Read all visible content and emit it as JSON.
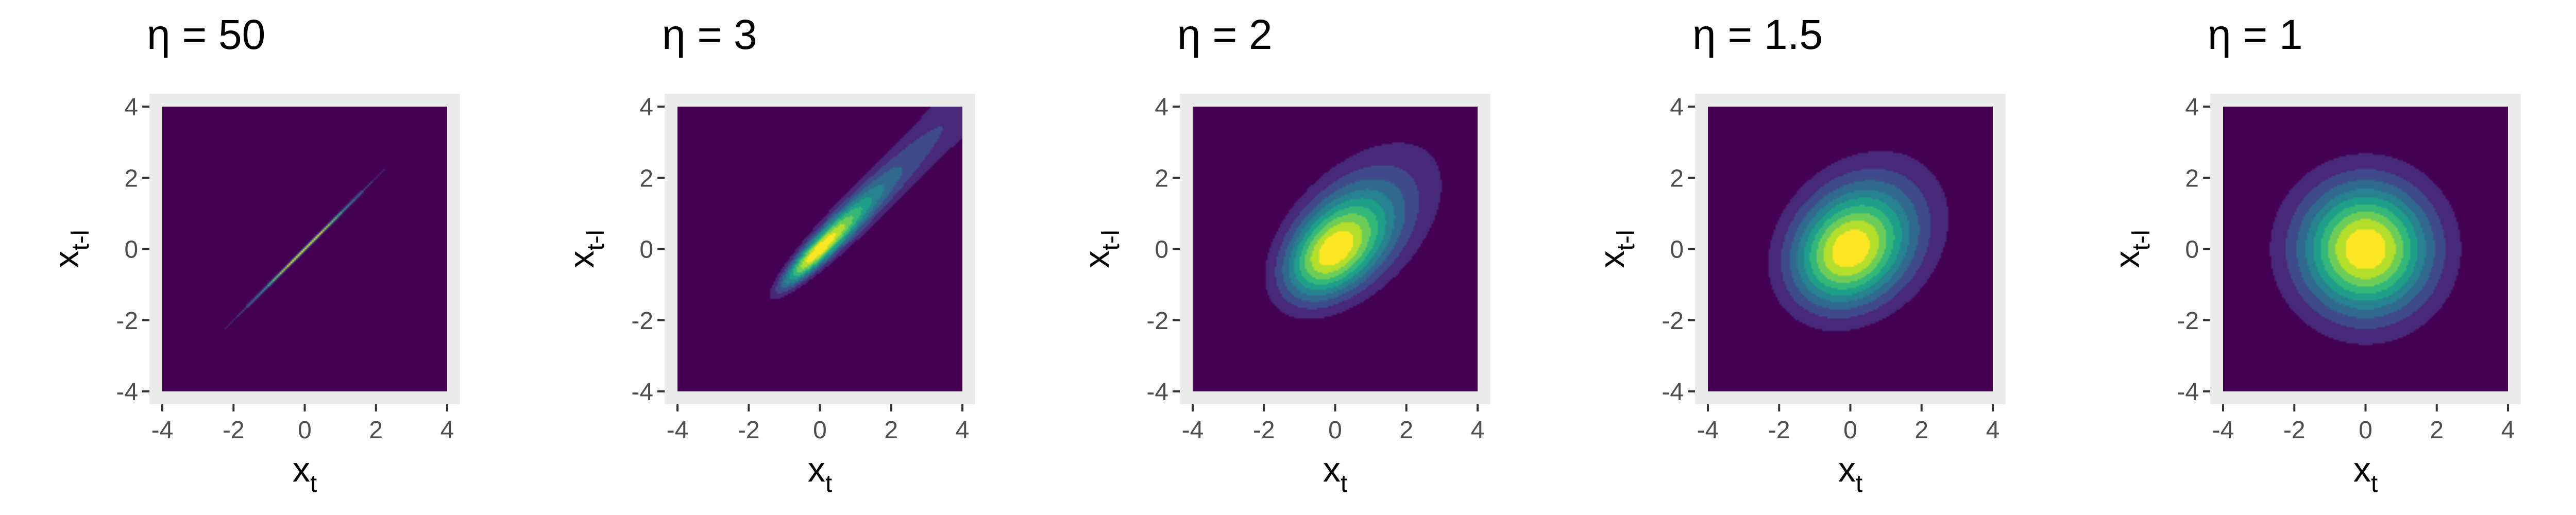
{
  "chart_data": [
    {
      "type": "heatmap",
      "title": "η = 50",
      "eta": 50,
      "xlabel": "x_t",
      "ylabel": "x_{t-l}",
      "xlim": [
        -4,
        4
      ],
      "ylim": [
        -4,
        4
      ],
      "xticks": [
        "-4",
        "-2",
        "0",
        "2",
        "4"
      ],
      "yticks": [
        "-4",
        "-2",
        "0",
        "2",
        "4"
      ],
      "colormap": "viridis",
      "background_color": "#440154"
    },
    {
      "type": "heatmap",
      "title": "η = 3",
      "eta": 3,
      "xlabel": "x_t",
      "ylabel": "x_{t-l}",
      "xlim": [
        -4,
        4
      ],
      "ylim": [
        -4,
        4
      ],
      "xticks": [
        "-4",
        "-2",
        "0",
        "2",
        "4"
      ],
      "yticks": [
        "-4",
        "-2",
        "0",
        "2",
        "4"
      ],
      "colormap": "viridis",
      "background_color": "#440154"
    },
    {
      "type": "heatmap",
      "title": "η = 2",
      "eta": 2,
      "xlabel": "x_t",
      "ylabel": "x_{t-l}",
      "xlim": [
        -4,
        4
      ],
      "ylim": [
        -4,
        4
      ],
      "xticks": [
        "-4",
        "-2",
        "0",
        "2",
        "4"
      ],
      "yticks": [
        "-4",
        "-2",
        "0",
        "2",
        "4"
      ],
      "colormap": "viridis",
      "background_color": "#440154"
    },
    {
      "type": "heatmap",
      "title": "η = 1.5",
      "eta": 1.5,
      "xlabel": "x_t",
      "ylabel": "x_{t-l}",
      "xlim": [
        -4,
        4
      ],
      "ylim": [
        -4,
        4
      ],
      "xticks": [
        "-4",
        "-2",
        "0",
        "2",
        "4"
      ],
      "yticks": [
        "-4",
        "-2",
        "0",
        "2",
        "4"
      ],
      "colormap": "viridis",
      "background_color": "#440154"
    },
    {
      "type": "heatmap",
      "title": "η = 1",
      "eta": 1,
      "xlabel": "x_t",
      "ylabel": "x_{t-l}",
      "xlim": [
        -4,
        4
      ],
      "ylim": [
        -4,
        4
      ],
      "xticks": [
        "-4",
        "-2",
        "0",
        "2",
        "4"
      ],
      "yticks": [
        "-4",
        "-2",
        "0",
        "2",
        "4"
      ],
      "colormap": "viridis",
      "background_color": "#440154"
    }
  ]
}
